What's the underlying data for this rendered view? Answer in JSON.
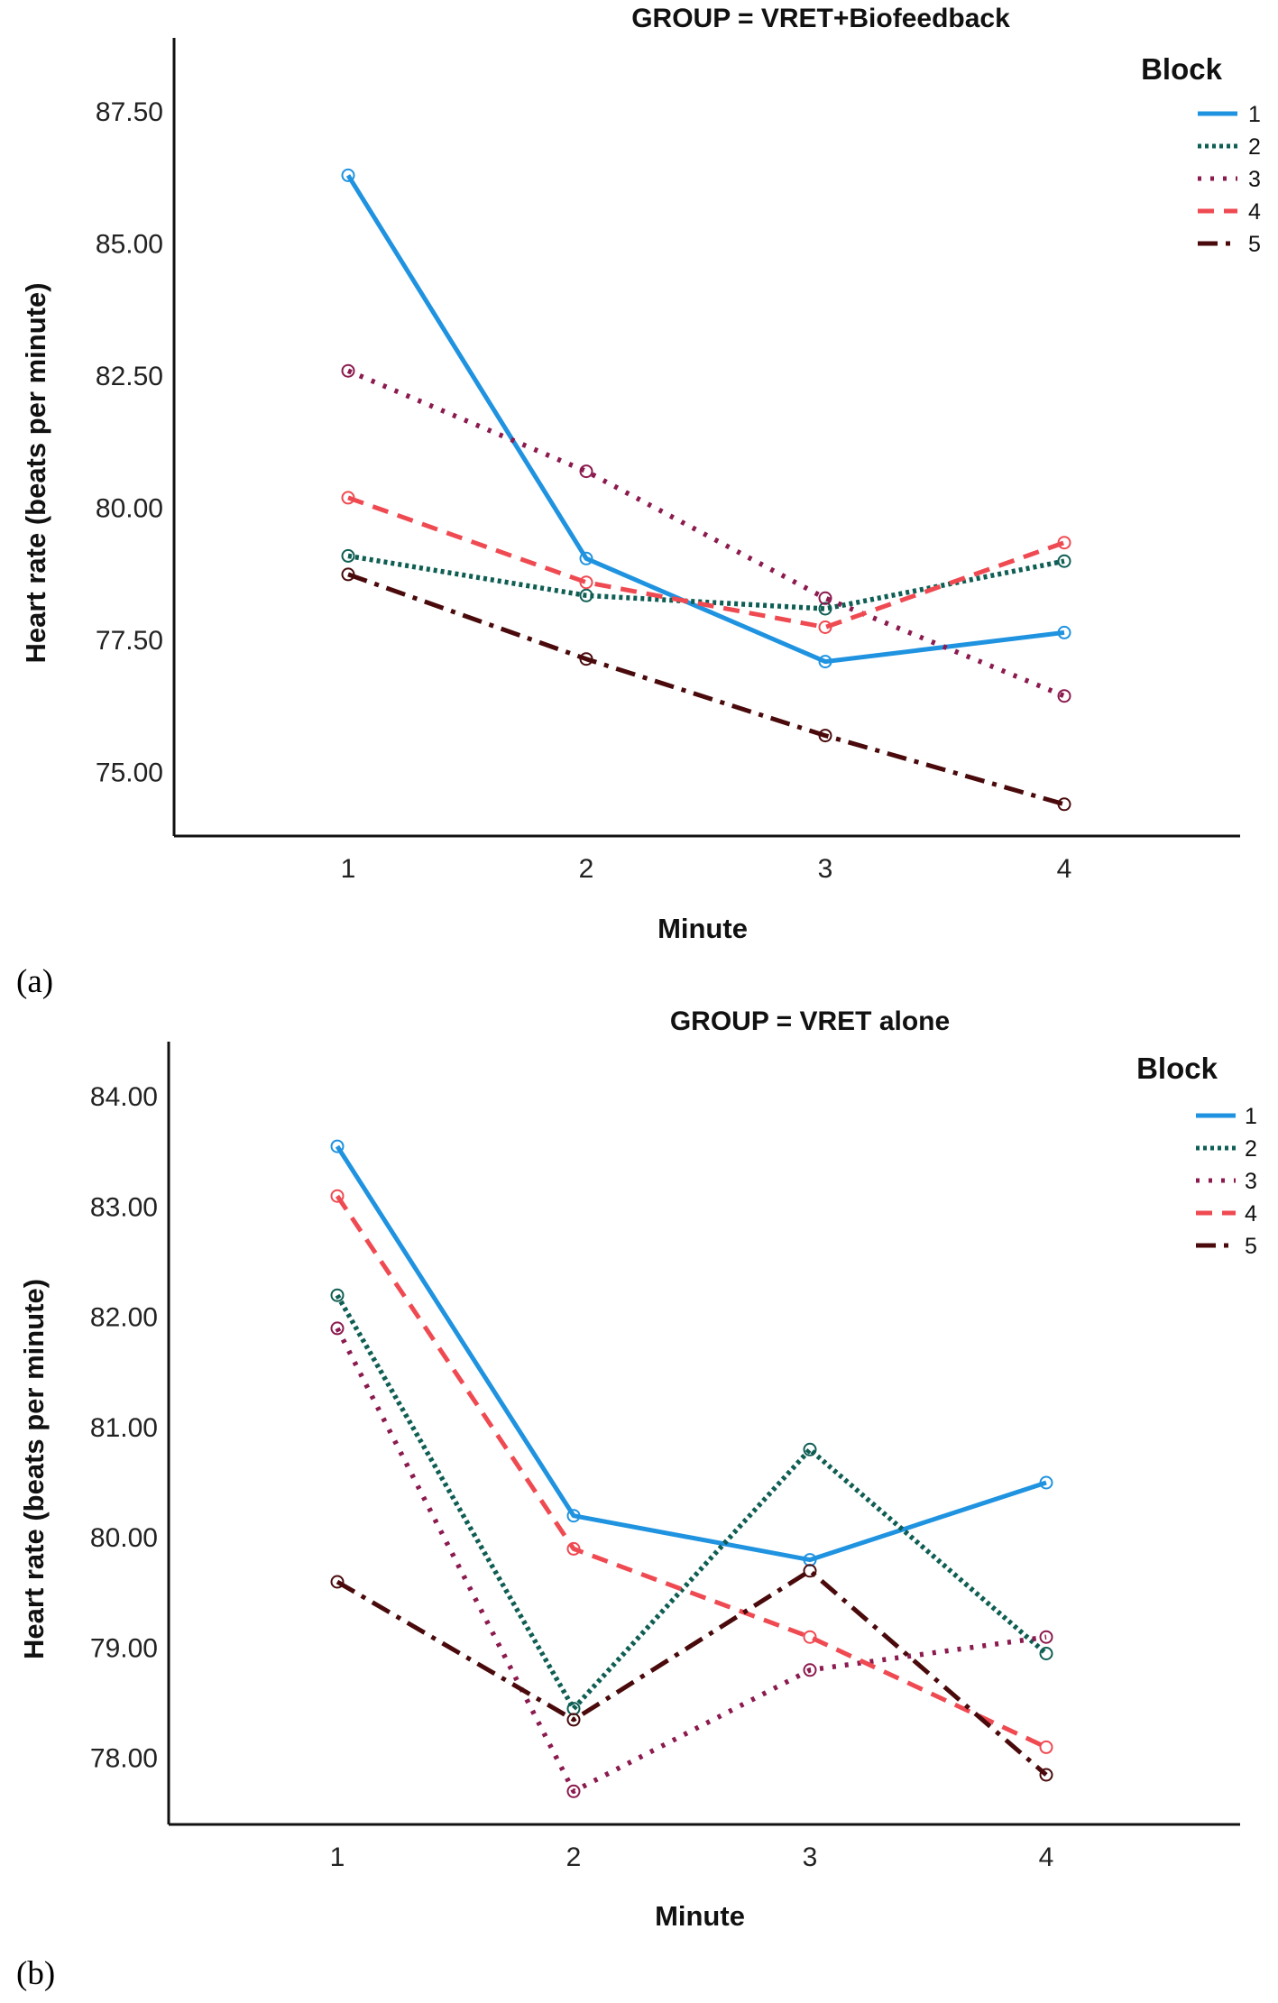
{
  "chart_data": [
    {
      "type": "line",
      "panel_label": "(a)",
      "title": "GROUP = VRET+Biofeedback",
      "xlabel": "Minute",
      "ylabel": "Heart rate (beats per minute)",
      "categories": [
        "1",
        "2",
        "3",
        "4"
      ],
      "ylim": [
        73.8,
        88.9
      ],
      "yticks": [
        "75.00",
        "77.50",
        "80.00",
        "82.50",
        "85.00",
        "87.50"
      ],
      "legend_title": "Block",
      "legend_position": "top-right",
      "series": [
        {
          "name": "1",
          "values": [
            86.3,
            79.05,
            77.1,
            77.65
          ],
          "color": "#1f93e0",
          "dash": "solid"
        },
        {
          "name": "2",
          "values": [
            79.1,
            78.35,
            78.1,
            79.0
          ],
          "color": "#0f5e54",
          "dash": "dotted"
        },
        {
          "name": "3",
          "values": [
            82.6,
            80.7,
            78.3,
            76.45
          ],
          "color": "#8b1a4e",
          "dash": "sparse-dotted"
        },
        {
          "name": "4",
          "values": [
            80.2,
            78.6,
            77.75,
            79.35
          ],
          "color": "#ef4a51",
          "dash": "dashed"
        },
        {
          "name": "5",
          "values": [
            78.75,
            77.15,
            75.7,
            74.4
          ],
          "color": "#4a0a0c",
          "dash": "dash-dot"
        }
      ]
    },
    {
      "type": "line",
      "panel_label": "(b)",
      "title": "GROUP = VRET alone",
      "xlabel": "Minute",
      "ylabel": "Heart rate (beats per minute)",
      "categories": [
        "1",
        "2",
        "3",
        "4"
      ],
      "ylim": [
        77.4,
        84.5
      ],
      "yticks": [
        "78.00",
        "79.00",
        "80.00",
        "81.00",
        "82.00",
        "83.00",
        "84.00"
      ],
      "legend_title": "Block",
      "legend_position": "top-right",
      "series": [
        {
          "name": "1",
          "values": [
            83.55,
            80.2,
            79.8,
            80.5
          ],
          "color": "#1f93e0",
          "dash": "solid"
        },
        {
          "name": "2",
          "values": [
            82.2,
            78.45,
            80.8,
            78.95
          ],
          "color": "#0f5e54",
          "dash": "dotted"
        },
        {
          "name": "3",
          "values": [
            81.9,
            77.7,
            78.8,
            79.1
          ],
          "color": "#8b1a4e",
          "dash": "sparse-dotted"
        },
        {
          "name": "4",
          "values": [
            83.1,
            79.9,
            79.1,
            78.1
          ],
          "color": "#ef4a51",
          "dash": "dashed"
        },
        {
          "name": "5",
          "values": [
            79.6,
            78.35,
            79.7,
            77.85
          ],
          "color": "#4a0a0c",
          "dash": "dash-dot"
        }
      ]
    }
  ]
}
